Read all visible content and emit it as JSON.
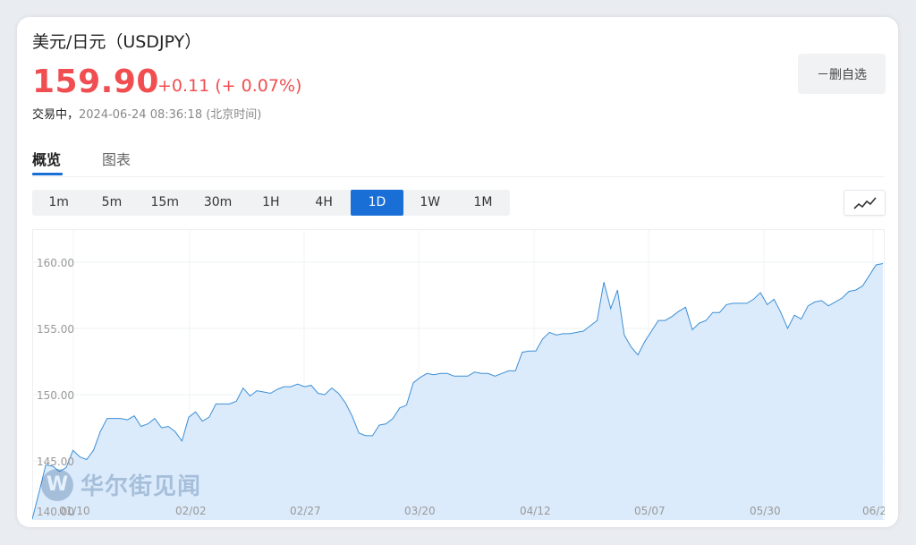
{
  "header": {
    "title": "美元/日元（USDJPY）",
    "price": "159.90",
    "change": "+0.11 (+ 0.07%)",
    "status_label": "交易中，",
    "timestamp": "2024-06-24 08:36:18 (北京时间)"
  },
  "watchlist_button": "－删自选",
  "tabs": [
    {
      "label": "概览",
      "active": true
    },
    {
      "label": "图表",
      "active": false
    }
  ],
  "periods": [
    "1m",
    "5m",
    "15m",
    "30m",
    "1H",
    "4H",
    "1D",
    "1W",
    "1M"
  ],
  "active_period": "1D",
  "watermark": "华尔街见闻",
  "colors": {
    "price_up": "#f04e50",
    "accent": "#1a6fd6",
    "line": "#3b8fd6",
    "area_fill": "#dcebfb"
  },
  "chart_data": {
    "type": "area",
    "ylim": [
      140,
      160.5
    ],
    "y_ticks": [
      "160.00",
      "155.00",
      "150.00",
      "145.00",
      "140.00"
    ],
    "x_tick_labels": [
      "01/10",
      "02/02",
      "02/27",
      "03/20",
      "04/12",
      "05/07",
      "05/30",
      "06/2"
    ],
    "grid": true,
    "values": [
      140.6,
      142.6,
      144.7,
      144.6,
      144.2,
      144.5,
      145.8,
      145.3,
      145.1,
      145.8,
      147.2,
      148.2,
      148.2,
      148.2,
      148.1,
      148.4,
      147.6,
      147.8,
      148.2,
      147.5,
      147.6,
      147.2,
      146.5,
      148.3,
      148.7,
      148.0,
      148.3,
      149.3,
      149.3,
      149.3,
      149.5,
      150.5,
      149.9,
      150.3,
      150.2,
      150.1,
      150.4,
      150.6,
      150.6,
      150.8,
      150.6,
      150.7,
      150.1,
      150.0,
      150.5,
      150.1,
      149.4,
      148.4,
      147.1,
      146.9,
      146.9,
      147.7,
      147.8,
      148.2,
      149.0,
      149.2,
      150.9,
      151.3,
      151.6,
      151.5,
      151.6,
      151.6,
      151.4,
      151.4,
      151.4,
      151.7,
      151.6,
      151.6,
      151.4,
      151.6,
      151.8,
      151.8,
      153.2,
      153.3,
      153.3,
      154.2,
      154.7,
      154.5,
      154.6,
      154.6,
      154.7,
      154.8,
      155.2,
      155.6,
      158.5,
      156.5,
      157.9,
      154.5,
      153.6,
      153.0,
      154.0,
      154.8,
      155.6,
      155.6,
      155.9,
      156.3,
      156.6,
      154.9,
      155.4,
      155.6,
      156.2,
      156.2,
      156.8,
      156.9,
      156.9,
      156.9,
      157.2,
      157.7,
      156.8,
      157.2,
      156.2,
      155.0,
      156.0,
      155.7,
      156.7,
      157.0,
      157.1,
      156.7,
      157.0,
      157.3,
      157.8,
      157.9,
      158.2,
      159.0,
      159.8,
      159.9
    ]
  }
}
